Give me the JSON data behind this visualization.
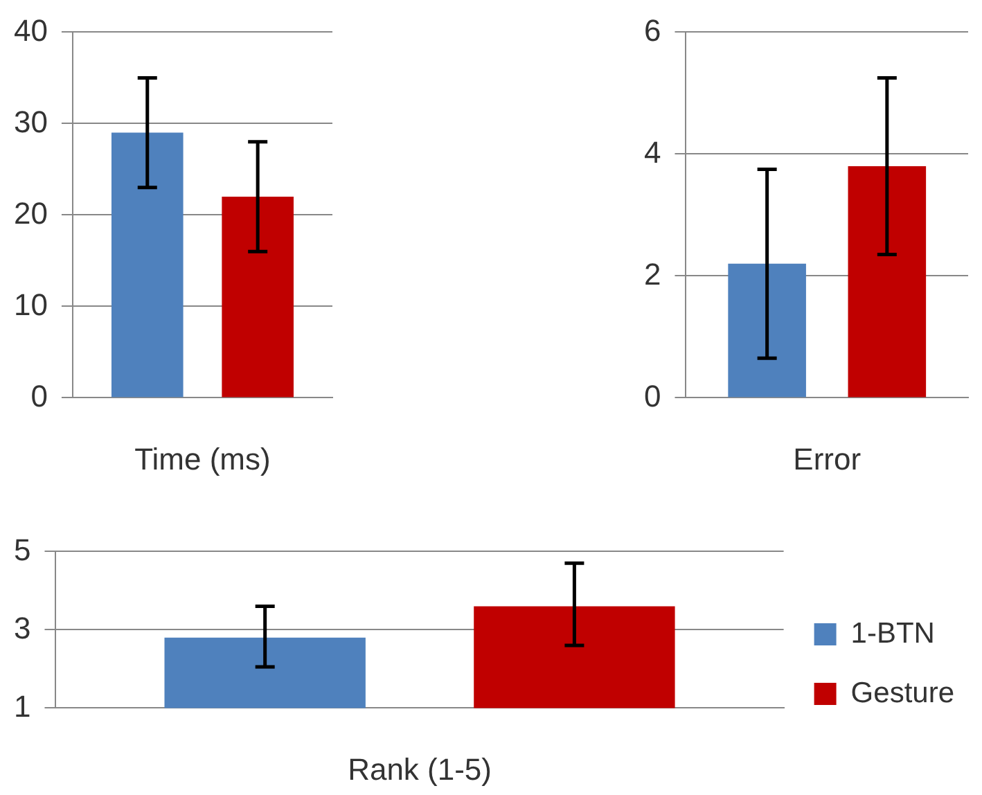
{
  "chart_data": [
    {
      "type": "bar",
      "xlabel": "Time (ms)",
      "categories": [
        null
      ],
      "ylim": [
        0,
        40
      ],
      "yticks": [
        0,
        10,
        20,
        30,
        40
      ],
      "grid": "y",
      "series": [
        {
          "color": "#4f81bd",
          "values": [
            29
          ],
          "errors": [
            [
              23,
              35
            ]
          ]
        },
        {
          "color": "#c00000",
          "values": [
            22
          ],
          "errors": [
            [
              16,
              28
            ]
          ]
        }
      ]
    },
    {
      "type": "bar",
      "xlabel": "Error",
      "categories": [
        null
      ],
      "ylim": [
        0,
        6
      ],
      "yticks": [
        0,
        2,
        4,
        6
      ],
      "grid": "y",
      "series": [
        {
          "color": "#4f81bd",
          "values": [
            2.2
          ],
          "errors": [
            [
              0.65,
              3.75
            ]
          ]
        },
        {
          "color": "#c00000",
          "values": [
            3.8
          ],
          "errors": [
            [
              2.35,
              5.25
            ]
          ]
        }
      ]
    },
    {
      "type": "bar",
      "xlabel": "Rank (1-5)",
      "categories": [
        null
      ],
      "ylim": [
        1,
        5
      ],
      "yticks": [
        1,
        3,
        5
      ],
      "grid": "y",
      "legend": "right",
      "series": [
        {
          "name": "1-BTN",
          "color": "#4f81bd",
          "values": [
            2.8
          ],
          "errors": [
            [
              2.05,
              3.6
            ]
          ]
        },
        {
          "name": "Gesture",
          "color": "#c00000",
          "values": [
            3.6
          ],
          "errors": [
            [
              2.6,
              4.7
            ]
          ]
        }
      ]
    }
  ]
}
